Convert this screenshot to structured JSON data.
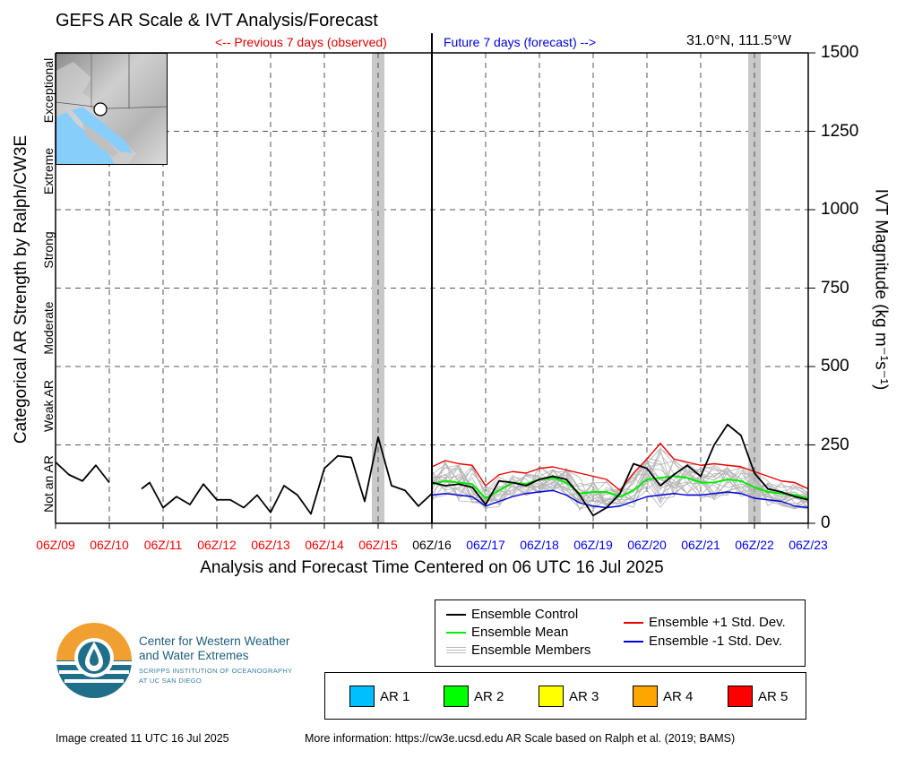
{
  "header": {
    "title": "GEFS AR Scale & IVT Analysis/Forecast",
    "previous_label": "<-- Previous 7 days (observed)",
    "future_label": "Future 7 days (forecast) -->",
    "coordinates": "31.0°N, 111.5°W"
  },
  "axes": {
    "x_title": "Analysis and Forecast Time Centered on 06 UTC 16 Jul 2025",
    "y_left_title": "Categorical AR Strength by Ralph/CW3E",
    "y_right_title": "IVT Magnitude (kg m⁻¹s⁻¹)",
    "categories": [
      "Not an AR",
      "Weak AR",
      "Moderate",
      "Strong",
      "Extreme",
      "Exceptional"
    ],
    "y_ticks": [
      "0",
      "250",
      "500",
      "750",
      "1000",
      "1250",
      "1500"
    ],
    "x_ticks": [
      {
        "label": "06Z/09",
        "color": "#ff0000"
      },
      {
        "label": "06Z/10",
        "color": "#ff0000"
      },
      {
        "label": "06Z/11",
        "color": "#ff0000"
      },
      {
        "label": "06Z/12",
        "color": "#ff0000"
      },
      {
        "label": "06Z/13",
        "color": "#ff0000"
      },
      {
        "label": "06Z/14",
        "color": "#ff0000"
      },
      {
        "label": "06Z/15",
        "color": "#ff0000"
      },
      {
        "label": "06Z/16",
        "color": "#000000"
      },
      {
        "label": "06Z/17",
        "color": "#0000ff"
      },
      {
        "label": "06Z/18",
        "color": "#0000ff"
      },
      {
        "label": "06Z/19",
        "color": "#0000ff"
      },
      {
        "label": "06Z/20",
        "color": "#0000ff"
      },
      {
        "label": "06Z/21",
        "color": "#0000ff"
      },
      {
        "label": "06Z/22",
        "color": "#0000ff"
      },
      {
        "label": "06Z/23",
        "color": "#0000ff"
      }
    ]
  },
  "legend": {
    "control": "Ensemble Control",
    "mean": "Ensemble Mean",
    "members": "Ensemble Members",
    "plus_std": "Ensemble +1 Std. Dev.",
    "minus_std": "Ensemble -1 Std. Dev."
  },
  "ar_legend": [
    {
      "label": "AR 1",
      "color": "#00bfff"
    },
    {
      "label": "AR 2",
      "color": "#00ff00"
    },
    {
      "label": "AR 3",
      "color": "#ffff00"
    },
    {
      "label": "AR 4",
      "color": "#ffa500"
    },
    {
      "label": "AR 5",
      "color": "#ff0000"
    }
  ],
  "organization": {
    "line1": "Center for Western Weather",
    "line2": "and Water Extremes",
    "line3": "SCRIPPS INSTITUTION OF OCEANOGRAPHY",
    "line4": "AT UC SAN DIEGO"
  },
  "footer": {
    "created": "Image created 11 UTC 16 Jul 2025",
    "more_info": "More information: https://cw3e.ucsd.edu AR Scale based on Ralph et al. (2019; BAMS)"
  },
  "colors": {
    "observed": "#ff0000",
    "forecast": "#0000ff",
    "control": "#000000",
    "mean": "#00ee00",
    "plus_std": "#ee0000",
    "minus_std": "#0000dd",
    "members": "#b4b4b4",
    "ar_shading": "#c8c8c8"
  },
  "chart_data": {
    "type": "line",
    "x_unit": "days relative to 06Z/16 Jul 2025",
    "xlim": [
      -7,
      7
    ],
    "ylim": [
      0,
      1500
    ],
    "grid": true,
    "ar_shading_days": [
      -1,
      6
    ],
    "observed": {
      "name": "Ensemble Control",
      "segment1": {
        "x": [
          -7,
          -6.75,
          -6.5,
          -6.25,
          -6
        ],
        "y": [
          195,
          155,
          135,
          185,
          130
        ]
      },
      "segment2": {
        "x": [
          -5.4,
          -5.25,
          -5,
          -4.75,
          -4.5,
          -4.25,
          -4,
          -3.75,
          -3.5,
          -3.25,
          -3,
          -2.75,
          -2.5,
          -2.25,
          -2,
          -1.75,
          -1.5,
          -1.25,
          -1,
          -0.75,
          -0.5,
          -0.25,
          0
        ],
        "y": [
          110,
          130,
          50,
          85,
          60,
          125,
          75,
          75,
          50,
          90,
          35,
          120,
          90,
          30,
          175,
          215,
          210,
          70,
          275,
          120,
          105,
          55,
          95
        ]
      }
    },
    "forecast": {
      "x": [
        0,
        0.25,
        0.5,
        0.75,
        1,
        1.25,
        1.5,
        1.75,
        2,
        2.25,
        2.5,
        2.75,
        3,
        3.25,
        3.5,
        3.75,
        4,
        4.25,
        4.5,
        4.75,
        5,
        5.25,
        5.5,
        5.75,
        6,
        6.25,
        6.5,
        6.75,
        7
      ],
      "control": [
        130,
        120,
        125,
        115,
        60,
        135,
        130,
        120,
        140,
        150,
        140,
        90,
        25,
        50,
        95,
        190,
        175,
        120,
        155,
        185,
        150,
        250,
        315,
        280,
        160,
        110,
        100,
        85,
        75
      ],
      "mean": [
        125,
        135,
        130,
        125,
        80,
        105,
        130,
        125,
        140,
        145,
        130,
        95,
        100,
        100,
        85,
        105,
        140,
        145,
        150,
        145,
        130,
        130,
        140,
        135,
        115,
        100,
        95,
        90,
        80
      ],
      "plus_std": [
        180,
        200,
        190,
        185,
        120,
        155,
        165,
        160,
        175,
        180,
        170,
        160,
        150,
        140,
        105,
        160,
        205,
        255,
        205,
        195,
        185,
        190,
        185,
        180,
        165,
        150,
        135,
        130,
        110
      ],
      "minus_std": [
        90,
        95,
        90,
        85,
        55,
        70,
        85,
        95,
        100,
        105,
        90,
        65,
        55,
        50,
        55,
        70,
        85,
        90,
        95,
        90,
        90,
        95,
        100,
        95,
        80,
        75,
        70,
        55,
        50
      ]
    }
  }
}
